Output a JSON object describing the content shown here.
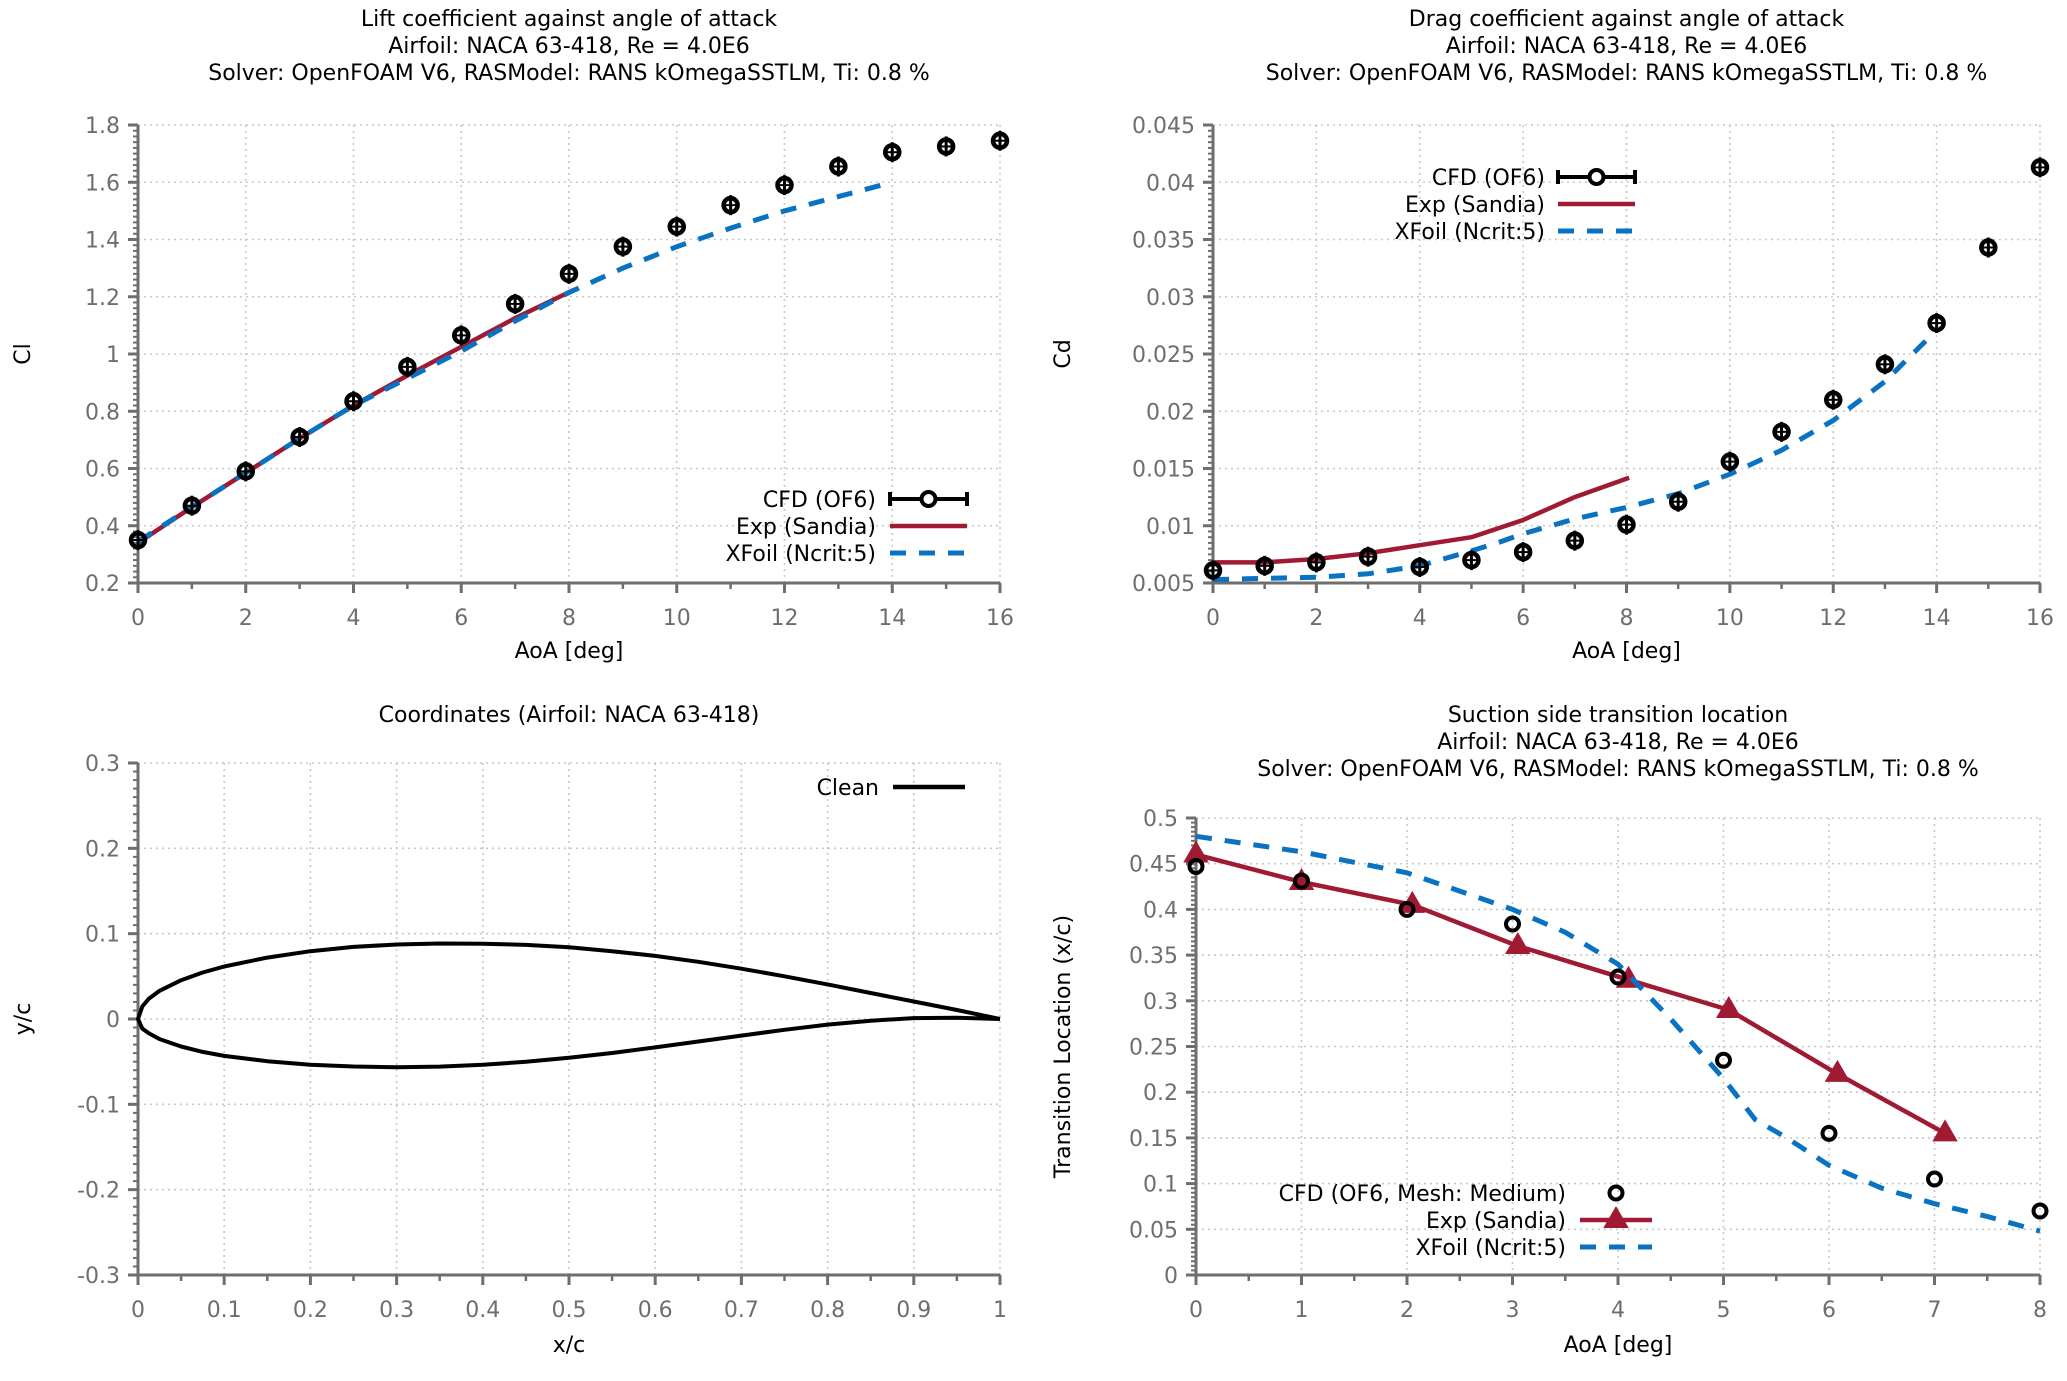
{
  "colors": {
    "cfd": "#000000",
    "exp": "#a11a33",
    "xfoil": "#0a72c2",
    "axis": "#6e6e6e",
    "grid": "#c8c8c8"
  },
  "chart_data": [
    {
      "id": "lift",
      "type": "line",
      "title": [
        "Lift coefficient against angle of attack",
        "Airfoil: NACA 63-418, Re = 4.0E6",
        "Solver: OpenFOAM V6, RASModel: RANS kOmegaSSTLM, Ti: 0.8 %"
      ],
      "xlabel": "AoA [deg]",
      "ylabel": "Cl",
      "xlim": [
        0,
        16
      ],
      "ylim": [
        0.2,
        1.8
      ],
      "xticks": [
        0,
        2,
        4,
        6,
        8,
        10,
        12,
        14,
        16
      ],
      "xtick_labels": [
        "0",
        "2",
        "4",
        "6",
        "8",
        "10",
        "12",
        "14",
        "16"
      ],
      "yticks": [
        0.2,
        0.4,
        0.6,
        0.8,
        1.0,
        1.2,
        1.4,
        1.6,
        1.8
      ],
      "ytick_labels": [
        "0.2",
        "0.4",
        "0.6",
        "0.8",
        "1",
        "1.2",
        "1.4",
        "1.6",
        "1.8"
      ],
      "grid": true,
      "legend_position": "bottom-right",
      "series": [
        {
          "name": "CFD (OF6)",
          "style": "errorbar-circle",
          "x": [
            0,
            1,
            2,
            3,
            4,
            5,
            6,
            7,
            8,
            9,
            10,
            11,
            12,
            13,
            14,
            15,
            16
          ],
          "y": [
            0.35,
            0.47,
            0.59,
            0.71,
            0.835,
            0.955,
            1.065,
            1.175,
            1.28,
            1.375,
            1.445,
            1.52,
            1.59,
            1.655,
            1.705,
            1.725,
            1.745
          ]
        },
        {
          "name": "Exp (Sandia)",
          "style": "line",
          "x": [
            0,
            1,
            2,
            3,
            4,
            5,
            6,
            7,
            8.1
          ],
          "y": [
            0.34,
            0.465,
            0.585,
            0.705,
            0.82,
            0.925,
            1.025,
            1.125,
            1.225
          ]
        },
        {
          "name": "XFoil (Ncrit:5)",
          "style": "dashed",
          "x": [
            0,
            1,
            2,
            3,
            4,
            5,
            6,
            7,
            8,
            9,
            10,
            11,
            12,
            13,
            14
          ],
          "y": [
            0.345,
            0.465,
            0.585,
            0.705,
            0.82,
            0.915,
            1.01,
            1.115,
            1.215,
            1.3,
            1.375,
            1.44,
            1.5,
            1.55,
            1.6
          ]
        }
      ]
    },
    {
      "id": "drag",
      "type": "line",
      "title": [
        "Drag coefficient against angle of attack",
        "Airfoil: NACA 63-418, Re = 4.0E6",
        "Solver: OpenFOAM V6, RASModel: RANS kOmegaSSTLM, Ti: 0.8 %"
      ],
      "xlabel": "AoA [deg]",
      "ylabel": "Cd",
      "xlim": [
        0,
        16
      ],
      "ylim": [
        0.005,
        0.045
      ],
      "xticks": [
        0,
        2,
        4,
        6,
        8,
        10,
        12,
        14,
        16
      ],
      "xtick_labels": [
        "0",
        "2",
        "4",
        "6",
        "8",
        "10",
        "12",
        "14",
        "16"
      ],
      "yticks": [
        0.005,
        0.01,
        0.015,
        0.02,
        0.025,
        0.03,
        0.035,
        0.04,
        0.045
      ],
      "ytick_labels": [
        "0.005",
        "0.01",
        "0.015",
        "0.02",
        "0.025",
        "0.03",
        "0.035",
        "0.04",
        "0.045"
      ],
      "grid": true,
      "legend_position": "top-left",
      "series": [
        {
          "name": "CFD (OF6)",
          "style": "errorbar-circle",
          "x": [
            0,
            1,
            2,
            3,
            4,
            5,
            6,
            7,
            8,
            9,
            10,
            11,
            12,
            13,
            14,
            15,
            16
          ],
          "y": [
            0.0061,
            0.0065,
            0.0068,
            0.0073,
            0.0064,
            0.007,
            0.0077,
            0.0087,
            0.0101,
            0.0121,
            0.0156,
            0.0182,
            0.021,
            0.0241,
            0.0277,
            0.0343,
            0.0413
          ]
        },
        {
          "name": "Exp (Sandia)",
          "style": "line",
          "x": [
            0,
            1,
            2,
            3,
            4,
            5,
            6,
            7,
            8.05
          ],
          "y": [
            0.0068,
            0.0068,
            0.0071,
            0.0076,
            0.0083,
            0.009,
            0.0105,
            0.0125,
            0.0142
          ]
        },
        {
          "name": "XFoil (Ncrit:5)",
          "style": "dashed",
          "x": [
            0,
            1,
            2,
            3,
            4,
            5,
            5.5,
            6,
            7,
            8,
            9,
            10,
            11,
            12,
            13,
            13.8
          ],
          "y": [
            0.0053,
            0.0054,
            0.0055,
            0.0058,
            0.0065,
            0.0078,
            0.0085,
            0.0093,
            0.0106,
            0.0116,
            0.0128,
            0.0145,
            0.0166,
            0.0192,
            0.0226,
            0.0262
          ]
        }
      ]
    },
    {
      "id": "coords",
      "type": "line",
      "title": [
        "Coordinates (Airfoil: NACA 63-418)"
      ],
      "xlabel": "x/c",
      "ylabel": "y/c",
      "xlim": [
        0,
        1
      ],
      "ylim": [
        -0.3,
        0.3
      ],
      "xticks": [
        0,
        0.1,
        0.2,
        0.3,
        0.4,
        0.5,
        0.6,
        0.7,
        0.8,
        0.9,
        1
      ],
      "xtick_labels": [
        "0",
        "0.1",
        "0.2",
        "0.3",
        "0.4",
        "0.5",
        "0.6",
        "0.7",
        "0.8",
        "0.9",
        "1"
      ],
      "yticks": [
        -0.3,
        -0.2,
        -0.1,
        0,
        0.1,
        0.2,
        0.3
      ],
      "ytick_labels": [
        "-0.3",
        "-0.2",
        "-0.1",
        "0",
        "0.1",
        "0.2",
        "0.3"
      ],
      "grid": true,
      "legend_position": "top-right",
      "series": [
        {
          "name": "Clean",
          "style": "line",
          "x": [
            1.0,
            0.95,
            0.9,
            0.85,
            0.8,
            0.75,
            0.7,
            0.65,
            0.6,
            0.55,
            0.5,
            0.45,
            0.4,
            0.35,
            0.3,
            0.25,
            0.2,
            0.15,
            0.1,
            0.075,
            0.05,
            0.025,
            0.0125,
            0.005,
            0.0,
            0.005,
            0.0125,
            0.025,
            0.05,
            0.075,
            0.1,
            0.15,
            0.2,
            0.25,
            0.3,
            0.35,
            0.4,
            0.45,
            0.5,
            0.55,
            0.6,
            0.65,
            0.7,
            0.75,
            0.8,
            0.85,
            0.9,
            0.95,
            1.0
          ],
          "y": [
            0.0,
            0.0105,
            0.0205,
            0.0305,
            0.0405,
            0.05,
            0.059,
            0.067,
            0.074,
            0.0795,
            0.084,
            0.0868,
            0.0883,
            0.0885,
            0.0873,
            0.0845,
            0.0795,
            0.072,
            0.0615,
            0.0545,
            0.0455,
            0.033,
            0.0238,
            0.0146,
            0.0,
            -0.0112,
            -0.0168,
            -0.0235,
            -0.0322,
            -0.0385,
            -0.0432,
            -0.0495,
            -0.0535,
            -0.0557,
            -0.0565,
            -0.0558,
            -0.0537,
            -0.0502,
            -0.0455,
            -0.0398,
            -0.0333,
            -0.0264,
            -0.0194,
            -0.0126,
            -0.0066,
            -0.002,
            0.001,
            0.0015,
            0.0
          ]
        }
      ]
    },
    {
      "id": "transition",
      "type": "line",
      "title": [
        "Suction side transition location",
        "Airfoil: NACA 63-418, Re = 4.0E6",
        "Solver: OpenFOAM V6, RASModel: RANS kOmegaSSTLM, Ti: 0.8 %"
      ],
      "xlabel": "AoA [deg]",
      "ylabel": "Transition Location (x/c)",
      "xlim": [
        0,
        8
      ],
      "ylim": [
        0,
        0.5
      ],
      "xticks": [
        0,
        1,
        2,
        3,
        4,
        5,
        6,
        7,
        8
      ],
      "xtick_labels": [
        "0",
        "1",
        "2",
        "3",
        "4",
        "5",
        "6",
        "7",
        "8"
      ],
      "yticks": [
        0,
        0.05,
        0.1,
        0.15,
        0.2,
        0.25,
        0.3,
        0.35,
        0.4,
        0.45,
        0.5
      ],
      "ytick_labels": [
        "0",
        "0.05",
        "0.1",
        "0.15",
        "0.2",
        "0.25",
        "0.3",
        "0.35",
        "0.4",
        "0.45",
        "0.5"
      ],
      "grid": true,
      "legend_position": "bottom-left",
      "series": [
        {
          "name": "CFD (OF6, Mesh: Medium)",
          "style": "circle",
          "x": [
            0,
            1,
            2,
            3,
            4,
            5,
            6,
            7,
            8
          ],
          "y": [
            0.447,
            0.431,
            0.4,
            0.384,
            0.326,
            0.235,
            0.155,
            0.105,
            0.07
          ]
        },
        {
          "name": "Exp (Sandia)",
          "style": "line-triangle",
          "x": [
            0,
            1,
            2.05,
            3.05,
            4.1,
            5.05,
            6.08,
            7.1
          ],
          "y": [
            0.46,
            0.43,
            0.405,
            0.36,
            0.323,
            0.29,
            0.22,
            0.155
          ]
        },
        {
          "name": "XFoil (Ncrit:5)",
          "style": "dashed",
          "x": [
            0,
            1,
            2,
            2.5,
            3,
            3.5,
            4,
            4.5,
            5,
            5.3,
            5.6,
            6,
            6.5,
            7,
            7.5,
            8
          ],
          "y": [
            0.48,
            0.463,
            0.44,
            0.42,
            0.4,
            0.375,
            0.34,
            0.28,
            0.215,
            0.17,
            0.15,
            0.12,
            0.095,
            0.078,
            0.064,
            0.048
          ]
        }
      ]
    }
  ]
}
